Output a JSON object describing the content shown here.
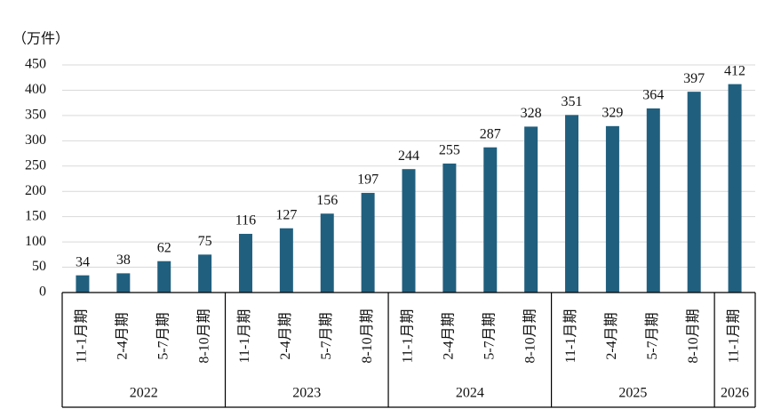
{
  "chart_data": {
    "type": "bar",
    "y_axis_label": "（万件）",
    "color": "#215f7e",
    "ylim": [
      0,
      450
    ],
    "yticks": [
      0,
      50,
      100,
      150,
      200,
      250,
      300,
      350,
      400,
      450
    ],
    "grid": true,
    "groups": [
      {
        "label": "2022",
        "categories": [
          "11-1月期",
          "2-4月期",
          "5-7月期",
          "8-10月期"
        ],
        "values": [
          34,
          38,
          62,
          75
        ]
      },
      {
        "label": "2023",
        "categories": [
          "11-1月期",
          "2-4月期",
          "5-7月期",
          "8-10月期"
        ],
        "values": [
          116,
          127,
          156,
          197
        ]
      },
      {
        "label": "2024",
        "categories": [
          "11-1月期",
          "2-4月期",
          "5-7月期",
          "8-10月期"
        ],
        "values": [
          244,
          255,
          287,
          328
        ]
      },
      {
        "label": "2025",
        "categories": [
          "11-1月期",
          "2-4月期",
          "5-7月期",
          "8-10月期"
        ],
        "values": [
          351,
          329,
          364,
          397
        ]
      },
      {
        "label": "2026",
        "categories": [
          "11-1月期"
        ],
        "values": [
          412
        ]
      }
    ]
  }
}
